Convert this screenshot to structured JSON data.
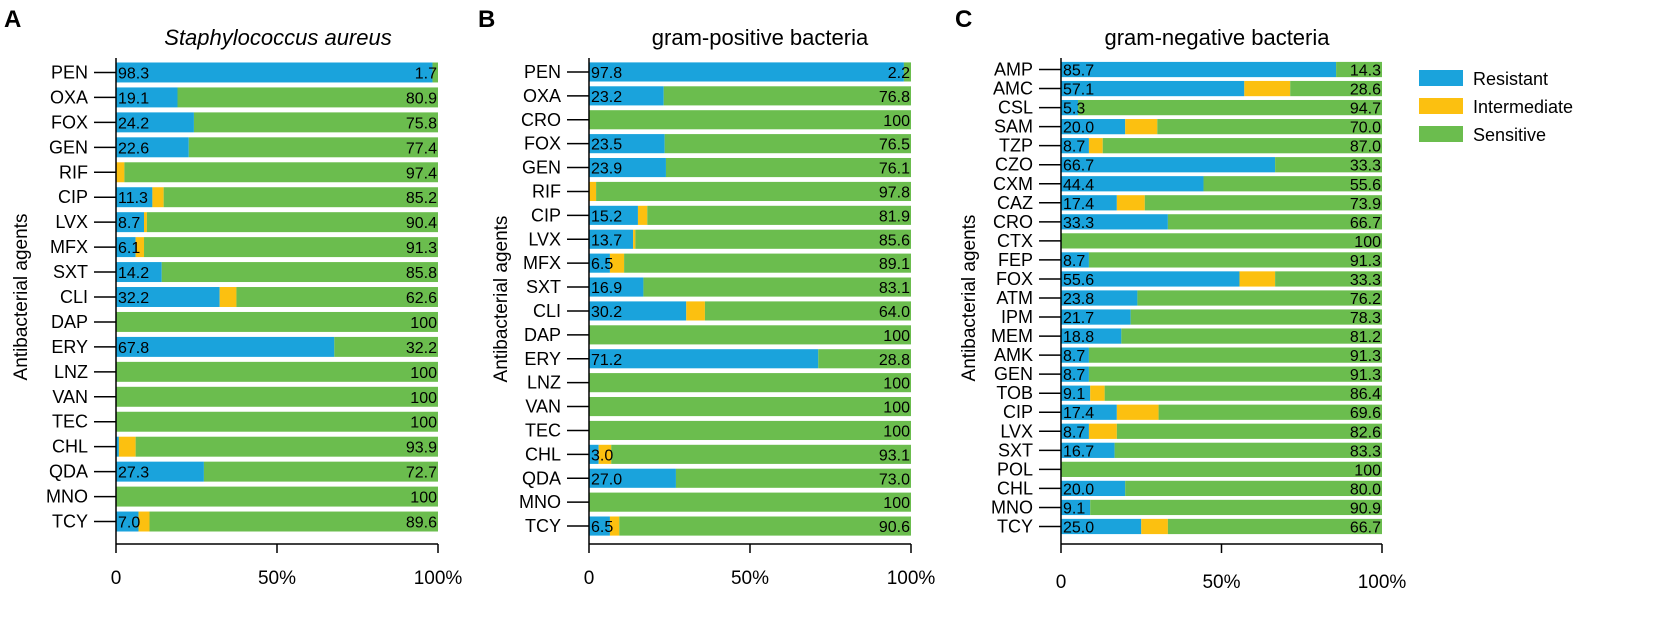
{
  "colors": {
    "resistant": "#1aa3dc",
    "intermediate": "#fcc010",
    "sensitive": "#6bbd4e",
    "axis": "#000000",
    "text": "#000000"
  },
  "legend": {
    "items": [
      {
        "key": "resistant",
        "label": "Resistant"
      },
      {
        "key": "intermediate",
        "label": "Intermediate"
      },
      {
        "key": "sensitive",
        "label": "Sensitive"
      }
    ]
  },
  "chart_data": [
    {
      "type": "bar",
      "orientation": "horizontal",
      "stacked": true,
      "panel_label": "A",
      "title": "Staphylococcus aureus",
      "title_italic": true,
      "ylabel": "Antibacterial agents",
      "xlabel": "",
      "xlim": [
        0,
        100
      ],
      "xticks": [
        "0",
        "50%",
        "100%"
      ],
      "categories": [
        "PEN",
        "OXA",
        "FOX",
        "GEN",
        "RIF",
        "CIP",
        "LVX",
        "MFX",
        "SXT",
        "CLI",
        "DAP",
        "ERY",
        "LNZ",
        "VAN",
        "TEC",
        "CHL",
        "QDA",
        "MNO",
        "TCY"
      ],
      "series": [
        {
          "name": "Resistant",
          "values": [
            98.3,
            19.1,
            24.2,
            22.6,
            0,
            11.3,
            8.7,
            6.1,
            14.2,
            32.2,
            0,
            67.8,
            0,
            0,
            0,
            0.9,
            27.3,
            0,
            7.0
          ],
          "labels": [
            "98.3",
            "19.1",
            "24.2",
            "22.6",
            "",
            "11.3",
            "8.7",
            "6.1",
            "14.2",
            "32.2",
            "",
            "67.8",
            "",
            "",
            "",
            "",
            "27.3",
            "",
            "7.0"
          ]
        },
        {
          "name": "Intermediate",
          "values": [
            0,
            0,
            0,
            0,
            2.6,
            3.5,
            0.9,
            2.6,
            0,
            5.2,
            0,
            0,
            0,
            0,
            0,
            5.2,
            0,
            0,
            3.4
          ],
          "labels": [
            "",
            "",
            "",
            "",
            "",
            "",
            "",
            "",
            "",
            "",
            "",
            "",
            "",
            "",
            "",
            "",
            "",
            "",
            ""
          ]
        },
        {
          "name": "Sensitive",
          "values": [
            1.7,
            80.9,
            75.8,
            77.4,
            97.4,
            85.2,
            90.4,
            91.3,
            85.8,
            62.6,
            100,
            32.2,
            100,
            100,
            100,
            93.9,
            72.7,
            100,
            89.6
          ],
          "labels": [
            "1.7",
            "80.9",
            "75.8",
            "77.4",
            "97.4",
            "85.2",
            "90.4",
            "91.3",
            "85.8",
            "62.6",
            "100",
            "32.2",
            "100",
            "100",
            "100",
            "93.9",
            "72.7",
            "100",
            "89.6"
          ]
        }
      ]
    },
    {
      "type": "bar",
      "orientation": "horizontal",
      "stacked": true,
      "panel_label": "B",
      "title": "gram-positive bacteria",
      "title_italic": false,
      "ylabel": "Antibacterial agents",
      "xlabel": "",
      "xlim": [
        0,
        100
      ],
      "xticks": [
        "0",
        "50%",
        "100%"
      ],
      "categories": [
        "PEN",
        "OXA",
        "CRO",
        "FOX",
        "GEN",
        "RIF",
        "CIP",
        "LVX",
        "MFX",
        "SXT",
        "CLI",
        "DAP",
        "ERY",
        "LNZ",
        "VAN",
        "TEC",
        "CHL",
        "QDA",
        "MNO",
        "TCY"
      ],
      "series": [
        {
          "name": "Resistant",
          "values": [
            97.8,
            23.2,
            0,
            23.5,
            23.9,
            0,
            15.2,
            13.7,
            6.5,
            16.9,
            30.2,
            0,
            71.2,
            0,
            0,
            0,
            3.0,
            27.0,
            0,
            6.5
          ],
          "labels": [
            "97.8",
            "23.2",
            "",
            "23.5",
            "23.9",
            "",
            "15.2",
            "13.7",
            "6.5",
            "16.9",
            "30.2",
            "",
            "71.2",
            "",
            "",
            "",
            "3.0",
            "27.0",
            "",
            "6.5"
          ]
        },
        {
          "name": "Intermediate",
          "values": [
            0,
            0,
            0,
            0,
            0,
            2.2,
            2.9,
            0.7,
            4.4,
            0,
            5.8,
            0,
            0,
            0,
            0,
            0,
            3.9,
            0,
            0,
            2.9
          ],
          "labels": [
            "",
            "",
            "",
            "",
            "",
            "",
            "",
            "",
            "",
            "",
            "",
            "",
            "",
            "",
            "",
            "",
            "",
            "",
            "",
            ""
          ]
        },
        {
          "name": "Sensitive",
          "values": [
            2.2,
            76.8,
            100,
            76.5,
            76.1,
            97.8,
            81.9,
            85.6,
            89.1,
            83.1,
            64.0,
            100,
            28.8,
            100,
            100,
            100,
            93.1,
            73.0,
            100,
            90.6
          ],
          "labels": [
            "2.2",
            "76.8",
            "100",
            "76.5",
            "76.1",
            "97.8",
            "81.9",
            "85.6",
            "89.1",
            "83.1",
            "64.0",
            "100",
            "28.8",
            "100",
            "100",
            "100",
            "93.1",
            "73.0",
            "100",
            "90.6"
          ]
        }
      ]
    },
    {
      "type": "bar",
      "orientation": "horizontal",
      "stacked": true,
      "panel_label": "C",
      "title": "gram-negative bacteria",
      "title_italic": false,
      "ylabel": "Antibacterial agents",
      "xlabel": "",
      "xlim": [
        0,
        100
      ],
      "xticks": [
        "0",
        "50%",
        "100%"
      ],
      "categories": [
        "AMP",
        "AMC",
        "CSL",
        "SAM",
        "TZP",
        "CZO",
        "CXM",
        "CAZ",
        "CRO",
        "CTX",
        "FEP",
        "FOX",
        "ATM",
        "IPM",
        "MEM",
        "AMK",
        "GEN",
        "TOB",
        "CIP",
        "LVX",
        "SXT",
        "POL",
        "CHL",
        "MNO",
        "TCY"
      ],
      "series": [
        {
          "name": "Resistant",
          "values": [
            85.7,
            57.1,
            5.3,
            20.0,
            8.7,
            66.7,
            44.4,
            17.4,
            33.3,
            0,
            8.7,
            55.6,
            23.8,
            21.7,
            18.8,
            8.7,
            8.7,
            9.1,
            17.4,
            8.7,
            16.7,
            0,
            20.0,
            9.1,
            25.0
          ],
          "labels": [
            "85.7",
            "57.1",
            "5.3",
            "20.0",
            "8.7",
            "66.7",
            "44.4",
            "17.4",
            "33.3",
            "",
            "8.7",
            "55.6",
            "23.8",
            "21.7",
            "18.8",
            "8.7",
            "8.7",
            "9.1",
            "17.4",
            "8.7",
            "16.7",
            "",
            "20.0",
            "9.1",
            "25.0"
          ]
        },
        {
          "name": "Intermediate",
          "values": [
            0,
            14.3,
            0,
            10.0,
            4.3,
            0,
            0,
            8.7,
            0,
            0,
            0,
            11.1,
            0,
            0,
            0,
            0,
            0,
            4.5,
            13.0,
            8.7,
            0,
            0,
            0,
            0,
            8.3
          ],
          "labels": [
            "",
            "",
            "",
            "",
            "",
            "",
            "",
            "",
            "",
            "",
            "",
            "",
            "",
            "",
            "",
            "",
            "",
            "",
            "",
            "",
            "",
            "",
            "",
            "",
            ""
          ]
        },
        {
          "name": "Sensitive",
          "values": [
            14.3,
            28.6,
            94.7,
            70.0,
            87.0,
            33.3,
            55.6,
            73.9,
            66.7,
            100,
            91.3,
            33.3,
            76.2,
            78.3,
            81.2,
            91.3,
            91.3,
            86.4,
            69.6,
            82.6,
            83.3,
            100,
            80.0,
            90.9,
            66.7
          ],
          "labels": [
            "14.3",
            "28.6",
            "94.7",
            "70.0",
            "87.0",
            "33.3",
            "55.6",
            "73.9",
            "66.7",
            "100",
            "91.3",
            "33.3",
            "76.2",
            "78.3",
            "81.2",
            "91.3",
            "91.3",
            "86.4",
            "69.6",
            "82.6",
            "83.3",
            "100",
            "80.0",
            "90.9",
            "66.7"
          ]
        }
      ]
    }
  ]
}
